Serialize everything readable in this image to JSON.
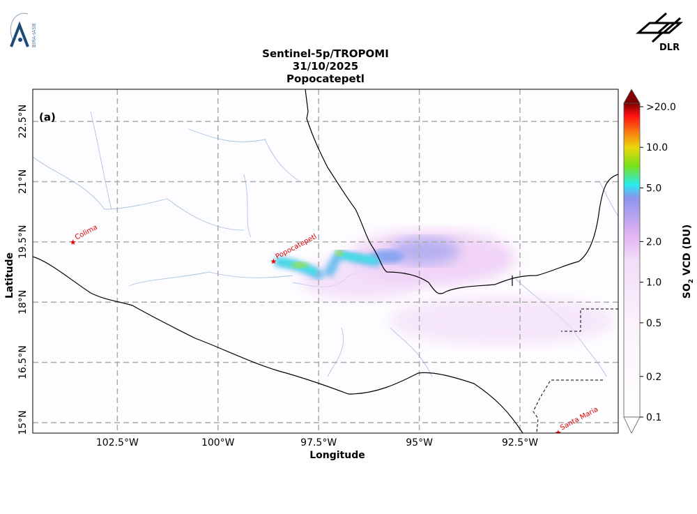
{
  "title": {
    "line1": "Sentinel-5p/TROPOMI",
    "line2": "31/10/2025",
    "line3": "Popocatepetl"
  },
  "logos": {
    "left": "BIRA-IASB",
    "right": "DLR"
  },
  "panel_label": "(a)",
  "map": {
    "xlabel": "Longitude",
    "ylabel": "Latitude",
    "lon_range": [
      -104.6,
      -90.06
    ],
    "lat_range": [
      14.74,
      23.3
    ],
    "lon_ticks": [
      {
        "value": -102.5,
        "label": "102.5°W"
      },
      {
        "value": -100,
        "label": "100°W"
      },
      {
        "value": -97.5,
        "label": "97.5°W"
      },
      {
        "value": -95,
        "label": "95°W"
      },
      {
        "value": -92.5,
        "label": "92.5°W"
      }
    ],
    "lat_ticks": [
      {
        "value": 22.5,
        "label": "22.5°N"
      },
      {
        "value": 21,
        "label": "21°N"
      },
      {
        "value": 19.5,
        "label": "19.5°N"
      },
      {
        "value": 18,
        "label": "18°N"
      },
      {
        "value": 16.5,
        "label": "16.5°N"
      },
      {
        "value": 15,
        "label": "15°N"
      }
    ],
    "grid": true,
    "volcanoes": [
      {
        "name": "Colima",
        "lon": -103.6,
        "lat": 19.5
      },
      {
        "name": "Popocatepetl",
        "lon": -98.62,
        "lat": 19.02
      },
      {
        "name": "Santa Maria",
        "lon": -91.55,
        "lat": 14.76
      }
    ]
  },
  "colorbar": {
    "label_pre": "SO",
    "label_sub": "2",
    "label_post": " VCD (DU)",
    "scale": "log",
    "ticks": [
      {
        "value": 20,
        "label": ">20.0"
      },
      {
        "value": 10,
        "label": "10.0"
      },
      {
        "value": 5,
        "label": "5.0"
      },
      {
        "value": 2,
        "label": "2.0"
      },
      {
        "value": 1,
        "label": "1.0"
      },
      {
        "value": 0.5,
        "label": "0.5"
      },
      {
        "value": 0.2,
        "label": "0.2"
      },
      {
        "value": 0.1,
        "label": "0.1"
      }
    ],
    "range": [
      0.1,
      20
    ]
  }
}
